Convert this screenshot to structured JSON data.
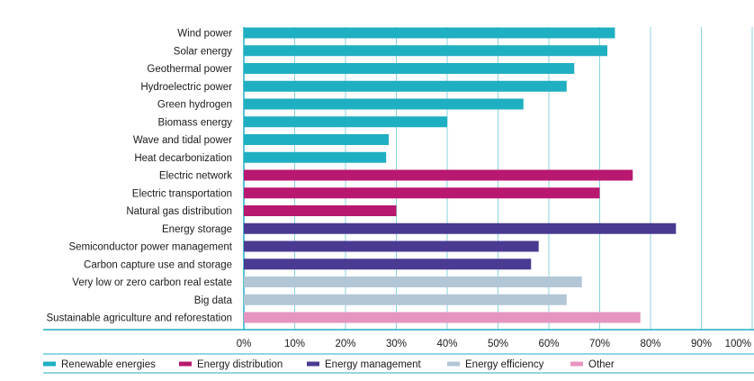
{
  "chart_data": {
    "type": "bar",
    "orientation": "horizontal",
    "categories": [
      "Wind power",
      "Solar energy",
      "Geothermal power",
      "Hydroelectric power",
      "Green hydrogen",
      "Biomass energy",
      "Wave and tidal power",
      "Heat decarbonization",
      "Electric network",
      "Electric transportation",
      "Natural gas distribution",
      "Energy storage",
      "Semiconductor power management",
      "Carbon capture use and storage",
      "Very low or zero carbon real estate",
      "Big data",
      "Sustainable agriculture and reforestation"
    ],
    "values": [
      73,
      71.5,
      65,
      63.5,
      55,
      40,
      28.5,
      28,
      76.5,
      70,
      30,
      85,
      58,
      56.5,
      66.5,
      63.5,
      78
    ],
    "groups": [
      "Renewable energies",
      "Renewable energies",
      "Renewable energies",
      "Renewable energies",
      "Renewable energies",
      "Renewable energies",
      "Renewable energies",
      "Renewable energies",
      "Energy distribution",
      "Energy distribution",
      "Energy distribution",
      "Energy management",
      "Energy management",
      "Energy management",
      "Energy efficiency",
      "Energy efficiency",
      "Other"
    ],
    "legend": [
      {
        "name": "Renewable energies",
        "color": "#1fafc2"
      },
      {
        "name": "Energy distribution",
        "color": "#b8186f"
      },
      {
        "name": "Energy management",
        "color": "#4a3a92"
      },
      {
        "name": "Energy efficiency",
        "color": "#b2c6d6"
      },
      {
        "name": "Other",
        "color": "#e694c0"
      }
    ],
    "x_ticks": [
      "0%",
      "10%",
      "20%",
      "30%",
      "40%",
      "50%",
      "60%",
      "70%",
      "80%",
      "90%",
      "100%"
    ],
    "xlim": [
      0,
      100
    ],
    "grid": true,
    "legend_position": "bottom"
  }
}
